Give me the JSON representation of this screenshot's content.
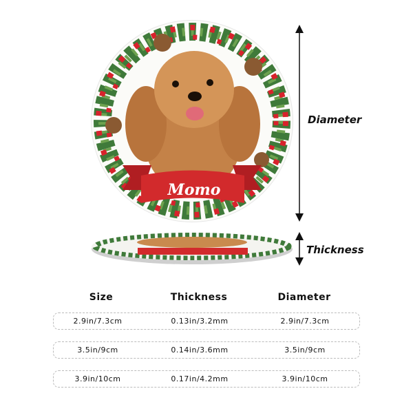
{
  "product": {
    "name_on_ribbon": "Momo",
    "colors": {
      "ribbon": "#d22a2c",
      "wreath": "#3f7a3a",
      "berry": "#d8222c",
      "fur": "#c98a4e"
    }
  },
  "dimension_labels": {
    "diameter": "Diameter",
    "thickness": "Thickness"
  },
  "table": {
    "headers": [
      "Size",
      "Thickness",
      "Diameter"
    ],
    "rows": [
      [
        "2.9in/7.3cm",
        "0.13in/3.2mm",
        "2.9in/7.3cm"
      ],
      [
        "3.5in/9cm",
        "0.14in/3.6mm",
        "3.5in/9cm"
      ],
      [
        "3.9in/10cm",
        "0.17in/4.2mm",
        "3.9in/10cm"
      ]
    ]
  }
}
